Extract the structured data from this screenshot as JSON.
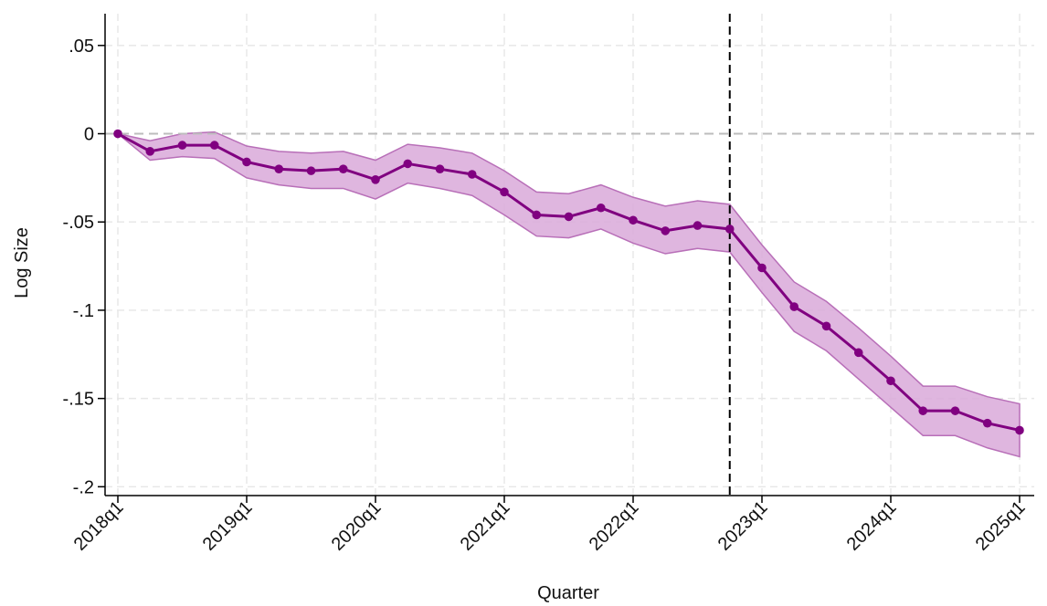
{
  "chart_data": {
    "type": "line",
    "title": "",
    "xlabel": "Quarter",
    "ylabel": "Log Size",
    "x_tick_labels": [
      "2018q1",
      "2019q1",
      "2020q1",
      "2021q1",
      "2022q1",
      "2023q1",
      "2024q1",
      "2025q1"
    ],
    "y_tick_values": [
      0.05,
      0,
      -0.05,
      -0.1,
      -0.15,
      -0.2
    ],
    "y_tick_labels": [
      ".05",
      "0",
      "-.05",
      "-.1",
      "-.15",
      "-.2"
    ],
    "ylim": [
      -0.205,
      0.068
    ],
    "x_quarters": [
      "2018q1",
      "2018q2",
      "2018q3",
      "2018q4",
      "2019q1",
      "2019q2",
      "2019q3",
      "2019q4",
      "2020q1",
      "2020q2",
      "2020q3",
      "2020q4",
      "2021q1",
      "2021q2",
      "2021q3",
      "2021q4",
      "2022q1",
      "2022q2",
      "2022q3",
      "2022q4",
      "2023q1",
      "2023q2",
      "2023q3",
      "2023q4",
      "2024q1",
      "2024q2",
      "2024q3",
      "2024q4",
      "2025q1"
    ],
    "series": [
      {
        "values": [
          0,
          -0.01,
          -0.0065,
          -0.0065,
          -0.016,
          -0.02,
          -0.021,
          -0.02,
          -0.026,
          -0.017,
          -0.02,
          -0.023,
          -0.033,
          -0.046,
          -0.047,
          -0.042,
          -0.049,
          -0.055,
          -0.052,
          -0.054,
          -0.076,
          -0.098,
          -0.109,
          -0.124,
          -0.14,
          -0.157,
          -0.157,
          -0.164,
          -0.168
        ],
        "ci_upper": [
          0,
          -0.004,
          0.0,
          0.001,
          -0.007,
          -0.01,
          -0.011,
          -0.01,
          -0.015,
          -0.006,
          -0.008,
          -0.011,
          -0.021,
          -0.033,
          -0.034,
          -0.029,
          -0.036,
          -0.041,
          -0.038,
          -0.04,
          -0.063,
          -0.084,
          -0.095,
          -0.11,
          -0.126,
          -0.143,
          -0.143,
          -0.149,
          -0.153
        ],
        "ci_lower": [
          0,
          -0.015,
          -0.013,
          -0.014,
          -0.025,
          -0.029,
          -0.031,
          -0.031,
          -0.037,
          -0.028,
          -0.031,
          -0.035,
          -0.046,
          -0.058,
          -0.059,
          -0.054,
          -0.062,
          -0.068,
          -0.065,
          -0.067,
          -0.09,
          -0.112,
          -0.123,
          -0.139,
          -0.155,
          -0.171,
          -0.171,
          -0.178,
          -0.183
        ]
      }
    ],
    "vertical_line_at": "2022q4",
    "reference_hline": 0,
    "grid": true,
    "colors": {
      "line": "#800080",
      "band": "#d9a9d9",
      "band_edge": "#b86fb8",
      "grid": "#e6e6e6",
      "zero_line": "#bdbdbd",
      "vline": "#000000"
    }
  }
}
